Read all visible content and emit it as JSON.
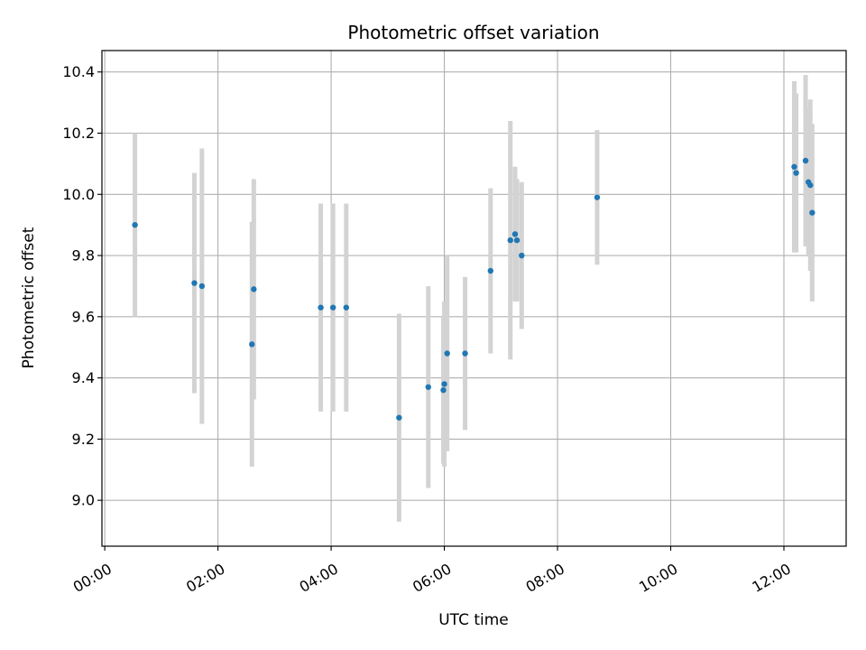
{
  "chart_data": {
    "type": "scatter",
    "title": "Photometric offset variation",
    "xlabel": "UTC time",
    "ylabel": "Photometric offset",
    "x_tick_labels": [
      "00:00",
      "02:00",
      "04:00",
      "06:00",
      "08:00",
      "10:00",
      "12:00"
    ],
    "y_tick_labels": [
      "9.0",
      "9.2",
      "9.4",
      "9.6",
      "9.8",
      "10.0",
      "10.2",
      "10.4"
    ],
    "xlim_hours": [
      -0.05,
      13.1
    ],
    "ylim": [
      8.85,
      10.47
    ],
    "grid": true,
    "colors": {
      "point": "#1f77b4",
      "errorbar": "#d3d3d3",
      "grid": "#b0b0b0"
    },
    "points": [
      {
        "t": "00:32",
        "y": 9.9,
        "err": 0.3
      },
      {
        "t": "01:35",
        "y": 9.71,
        "err": 0.36
      },
      {
        "t": "01:43",
        "y": 9.7,
        "err": 0.45
      },
      {
        "t": "02:36",
        "y": 9.51,
        "err": 0.4
      },
      {
        "t": "02:38",
        "y": 9.69,
        "err": 0.36
      },
      {
        "t": "03:49",
        "y": 9.63,
        "err": 0.34
      },
      {
        "t": "04:02",
        "y": 9.63,
        "err": 0.34
      },
      {
        "t": "04:16",
        "y": 9.63,
        "err": 0.34
      },
      {
        "t": "05:12",
        "y": 9.27,
        "err": 0.34
      },
      {
        "t": "05:43",
        "y": 9.37,
        "err": 0.33
      },
      {
        "t": "05:59",
        "y": 9.36,
        "err": 0.24
      },
      {
        "t": "06:00",
        "y": 9.38,
        "err": 0.27
      },
      {
        "t": "06:03",
        "y": 9.48,
        "err": 0.32
      },
      {
        "t": "06:22",
        "y": 9.48,
        "err": 0.25
      },
      {
        "t": "06:49",
        "y": 9.75,
        "err": 0.27
      },
      {
        "t": "07:10",
        "y": 9.85,
        "err": 0.39
      },
      {
        "t": "07:15",
        "y": 9.87,
        "err": 0.22
      },
      {
        "t": "07:17",
        "y": 9.85,
        "err": 0.2
      },
      {
        "t": "07:22",
        "y": 9.8,
        "err": 0.24
      },
      {
        "t": "08:42",
        "y": 9.99,
        "err": 0.22
      },
      {
        "t": "12:11",
        "y": 10.09,
        "err": 0.28
      },
      {
        "t": "12:13",
        "y": 10.07,
        "err": 0.26
      },
      {
        "t": "12:23",
        "y": 10.11,
        "err": 0.28
      },
      {
        "t": "12:26",
        "y": 10.04,
        "err": 0.24
      },
      {
        "t": "12:28",
        "y": 10.03,
        "err": 0.28
      },
      {
        "t": "12:30",
        "y": 9.94,
        "err": 0.29
      }
    ]
  }
}
